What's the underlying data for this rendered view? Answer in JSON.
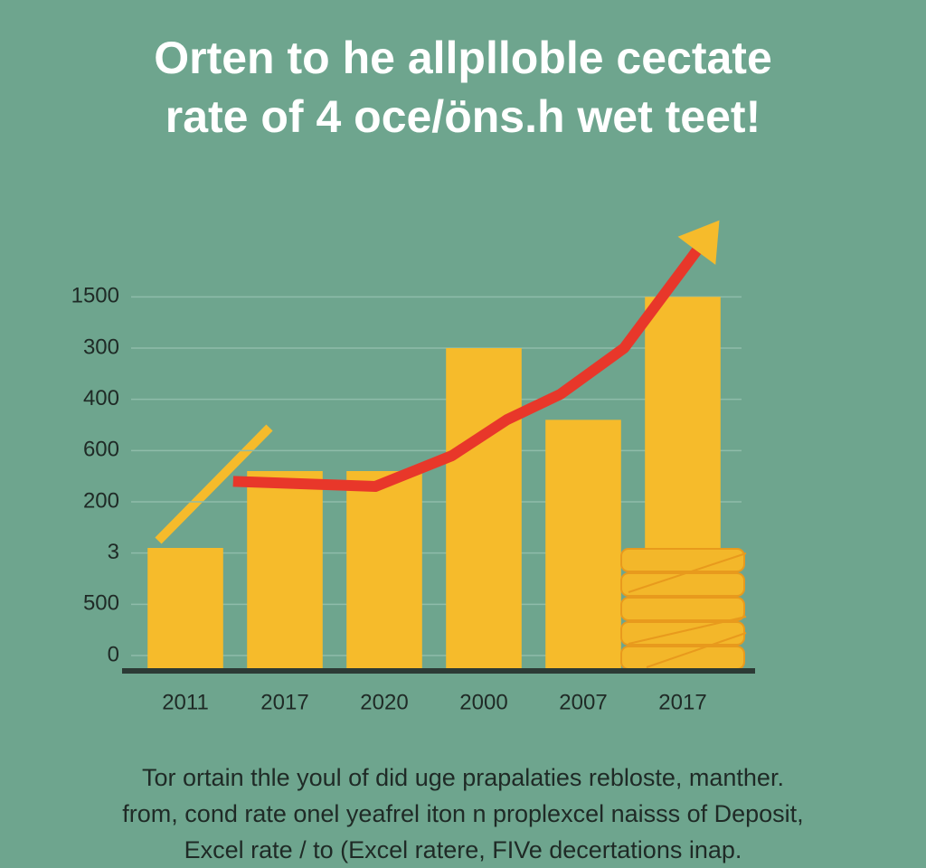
{
  "title": [
    "Orten to he allplloble cectate",
    "rate of 4 oce/öns.h wet teet!"
  ],
  "chart_data": {
    "type": "bar",
    "categories": [
      "2011",
      "2017",
      "2020",
      "2000",
      "2007",
      "2017"
    ],
    "values": [
      2.1,
      3.6,
      3.6,
      6.0,
      4.6,
      7.0
    ],
    "color": "#f6bb2b",
    "ylim": [
      -0.3,
      8.7
    ],
    "yticks": [
      {
        "value": 0,
        "label": "0"
      },
      {
        "value": 1,
        "label": "500"
      },
      {
        "value": 2,
        "label": "3"
      },
      {
        "value": 3,
        "label": "200"
      },
      {
        "value": 4,
        "label": "600"
      },
      {
        "value": 5,
        "label": "400"
      },
      {
        "value": 6,
        "label": "300"
      },
      {
        "value": 7,
        "label": "1500"
      }
    ],
    "grid": true,
    "trend": {
      "color": "#e8372a",
      "x": [
        0.48,
        1.91,
        2.68,
        3.23,
        3.77,
        4.41,
        5.14
      ],
      "values": [
        3.4,
        3.3,
        3.9,
        4.6,
        5.1,
        6.0,
        7.9
      ]
    }
  },
  "caption": [
    "Tor ortain thle youl of did uge prapalaties rebloste, manther.",
    "from, cond rate onel yeafrel iton n proplexcel naisss of Deposit,",
    "Excel rate / to (Excel ratere, FIVe decertations inap."
  ]
}
